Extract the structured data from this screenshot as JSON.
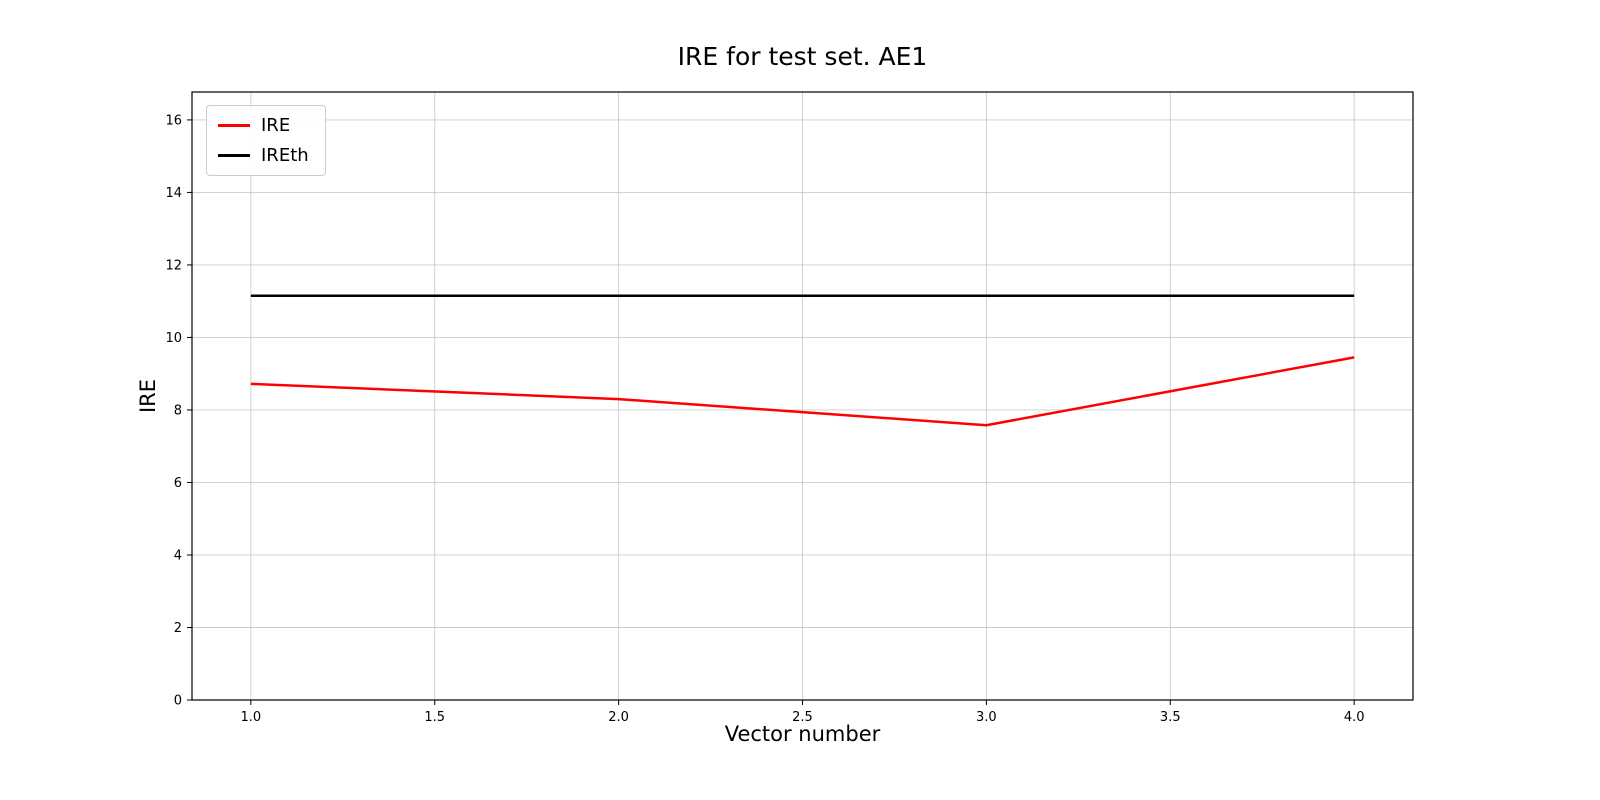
{
  "chart_data": {
    "type": "line",
    "title": "IRE for test set. AE1",
    "xlabel": "Vector number",
    "ylabel": "IRE",
    "xlim": [
      0.84,
      4.16
    ],
    "ylim": [
      0,
      16.77
    ],
    "xticks": [
      1.0,
      1.5,
      2.0,
      2.5,
      3.0,
      3.5,
      4.0
    ],
    "xtick_labels": [
      "1.0",
      "1.5",
      "2.0",
      "2.5",
      "3.0",
      "3.5",
      "4.0"
    ],
    "yticks": [
      0,
      2,
      4,
      6,
      8,
      10,
      12,
      14,
      16
    ],
    "ytick_labels": [
      "0",
      "2",
      "4",
      "6",
      "8",
      "10",
      "12",
      "14",
      "16"
    ],
    "grid": true,
    "legend_position": "upper left",
    "series": [
      {
        "name": "IRE",
        "color": "#ff0000",
        "linewidth": 2.5,
        "x": [
          1,
          2,
          3,
          4
        ],
        "y": [
          8.72,
          8.3,
          7.58,
          9.45
        ]
      },
      {
        "name": "IREth",
        "color": "#000000",
        "linewidth": 2.5,
        "x": [
          1,
          4
        ],
        "y": [
          11.15,
          11.15
        ]
      }
    ],
    "colors": {
      "grid": "#cccccc",
      "axes_frame": "#000000",
      "background": "#ffffff"
    }
  }
}
